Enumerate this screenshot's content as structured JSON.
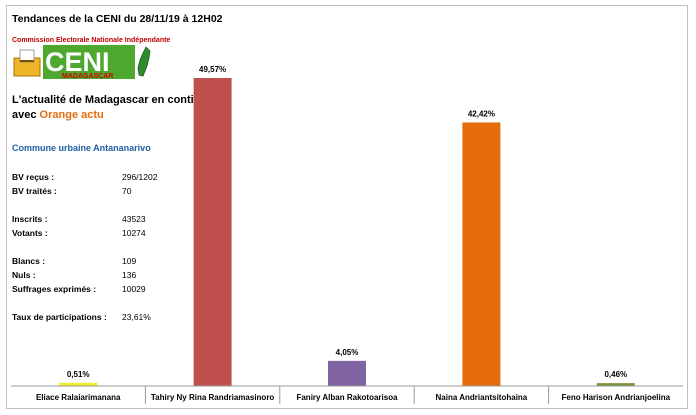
{
  "header": {
    "title": "Tendances de la CENI du 28/11/19 à 12H02",
    "org_name": "Commission Electorale Nationale Indépendante",
    "logo_text": "CENI",
    "logo_subtext": "MADAGASCAR"
  },
  "promo": {
    "line1": "L'actualité de Madagascar en continu",
    "line2_prefix": "avec",
    "line2_brand": "Orange actu"
  },
  "stats": {
    "commune": "Commune urbaine Antananarivo",
    "rows": [
      {
        "label": "BV reçus :",
        "value": "296/1202"
      },
      {
        "label": "BV traités :",
        "value": "70"
      },
      {
        "label": "Inscrits :",
        "value": "43523"
      },
      {
        "label": "Votants :",
        "value": "10274"
      },
      {
        "label": "Blancs :",
        "value": "109"
      },
      {
        "label": "Nuls :",
        "value": "136"
      },
      {
        "label": "Suffrages exprimés :",
        "value": "10029"
      },
      {
        "label": "Taux de participations :",
        "value": "23,61%"
      }
    ]
  },
  "colors": {
    "brand_orange": "#e46c0a",
    "commune_blue": "#1f5fa8",
    "logo_green": "#4ea72e"
  },
  "chart_data": {
    "type": "bar",
    "title": "",
    "xlabel": "",
    "ylabel": "",
    "ylim": [
      0,
      50
    ],
    "grid": false,
    "categories": [
      "Eliace Ralaiarimanana",
      "Tahiry Ny Rina Randriamasinoro",
      "Faniry Alban Rakotoarisoa",
      "Naina Andriantsitohaina",
      "Feno Harison Andrianjoelina"
    ],
    "values": [
      0.51,
      49.57,
      4.05,
      42.42,
      0.46
    ],
    "data_labels": [
      "0,51%",
      "49,57%",
      "4,05%",
      "42,42%",
      "0,46%"
    ],
    "colors": [
      "#f2ec2c",
      "#c0504d",
      "#8064a2",
      "#e46c0a",
      "#77933c"
    ]
  }
}
